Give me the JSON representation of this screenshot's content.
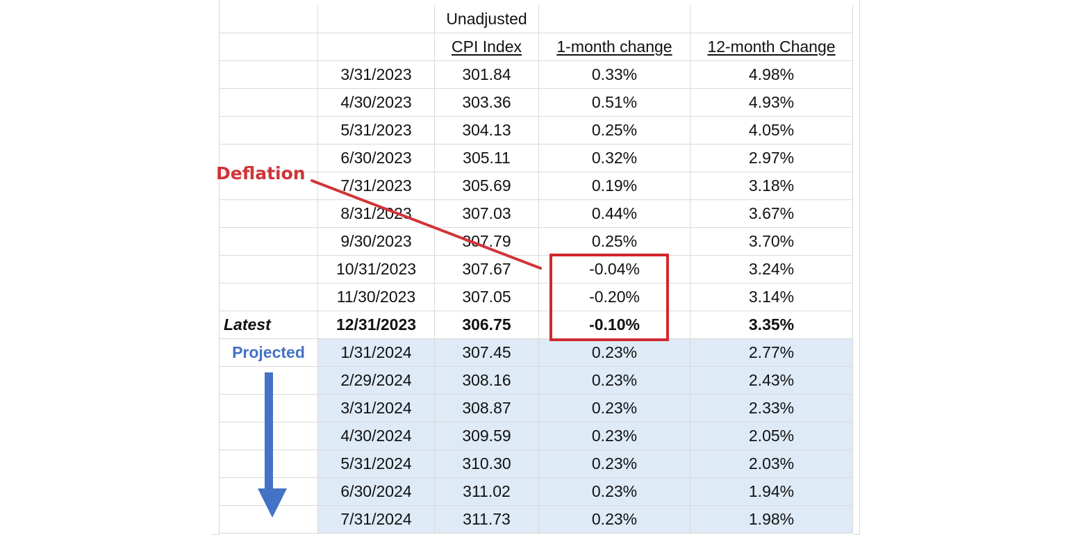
{
  "headers": {
    "cpi_line1": "Unadjusted",
    "cpi_line2": "CPI Index",
    "one_month": "1-month change",
    "twelve_month": "12-month Change"
  },
  "labels": {
    "latest": "Latest",
    "projected": "Projected",
    "deflation": "Deflation"
  },
  "rows": [
    {
      "date": "3/31/2023",
      "cpi": "301.84",
      "m1": "0.33%",
      "m12": "4.98%"
    },
    {
      "date": "4/30/2023",
      "cpi": "303.36",
      "m1": "0.51%",
      "m12": "4.93%"
    },
    {
      "date": "5/31/2023",
      "cpi": "304.13",
      "m1": "0.25%",
      "m12": "4.05%"
    },
    {
      "date": "6/30/2023",
      "cpi": "305.11",
      "m1": "0.32%",
      "m12": "2.97%"
    },
    {
      "date": "7/31/2023",
      "cpi": "305.69",
      "m1": "0.19%",
      "m12": "3.18%"
    },
    {
      "date": "8/31/2023",
      "cpi": "307.03",
      "m1": "0.44%",
      "m12": "3.67%"
    },
    {
      "date": "9/30/2023",
      "cpi": "307.79",
      "m1": "0.25%",
      "m12": "3.70%"
    },
    {
      "date": "10/31/2023",
      "cpi": "307.67",
      "m1": "-0.04%",
      "m12": "3.24%"
    },
    {
      "date": "11/30/2023",
      "cpi": "307.05",
      "m1": "-0.20%",
      "m12": "3.14%"
    },
    {
      "date": "12/31/2023",
      "cpi": "306.75",
      "m1": "-0.10%",
      "m12": "3.35%"
    },
    {
      "date": "1/31/2024",
      "cpi": "307.45",
      "m1": "0.23%",
      "m12": "2.77%"
    },
    {
      "date": "2/29/2024",
      "cpi": "308.16",
      "m1": "0.23%",
      "m12": "2.43%"
    },
    {
      "date": "3/31/2024",
      "cpi": "308.87",
      "m1": "0.23%",
      "m12": "2.33%"
    },
    {
      "date": "4/30/2024",
      "cpi": "309.59",
      "m1": "0.23%",
      "m12": "2.05%"
    },
    {
      "date": "5/31/2024",
      "cpi": "310.30",
      "m1": "0.23%",
      "m12": "2.03%"
    },
    {
      "date": "6/30/2024",
      "cpi": "311.02",
      "m1": "0.23%",
      "m12": "1.94%"
    },
    {
      "date": "7/31/2024",
      "cpi": "311.73",
      "m1": "0.23%",
      "m12": "1.98%"
    }
  ],
  "colors": {
    "projected_shading": "#deeaf6",
    "deflation_red": "#d03438",
    "projected_blue": "#4472c4",
    "gridline": "#d9d9d9"
  }
}
